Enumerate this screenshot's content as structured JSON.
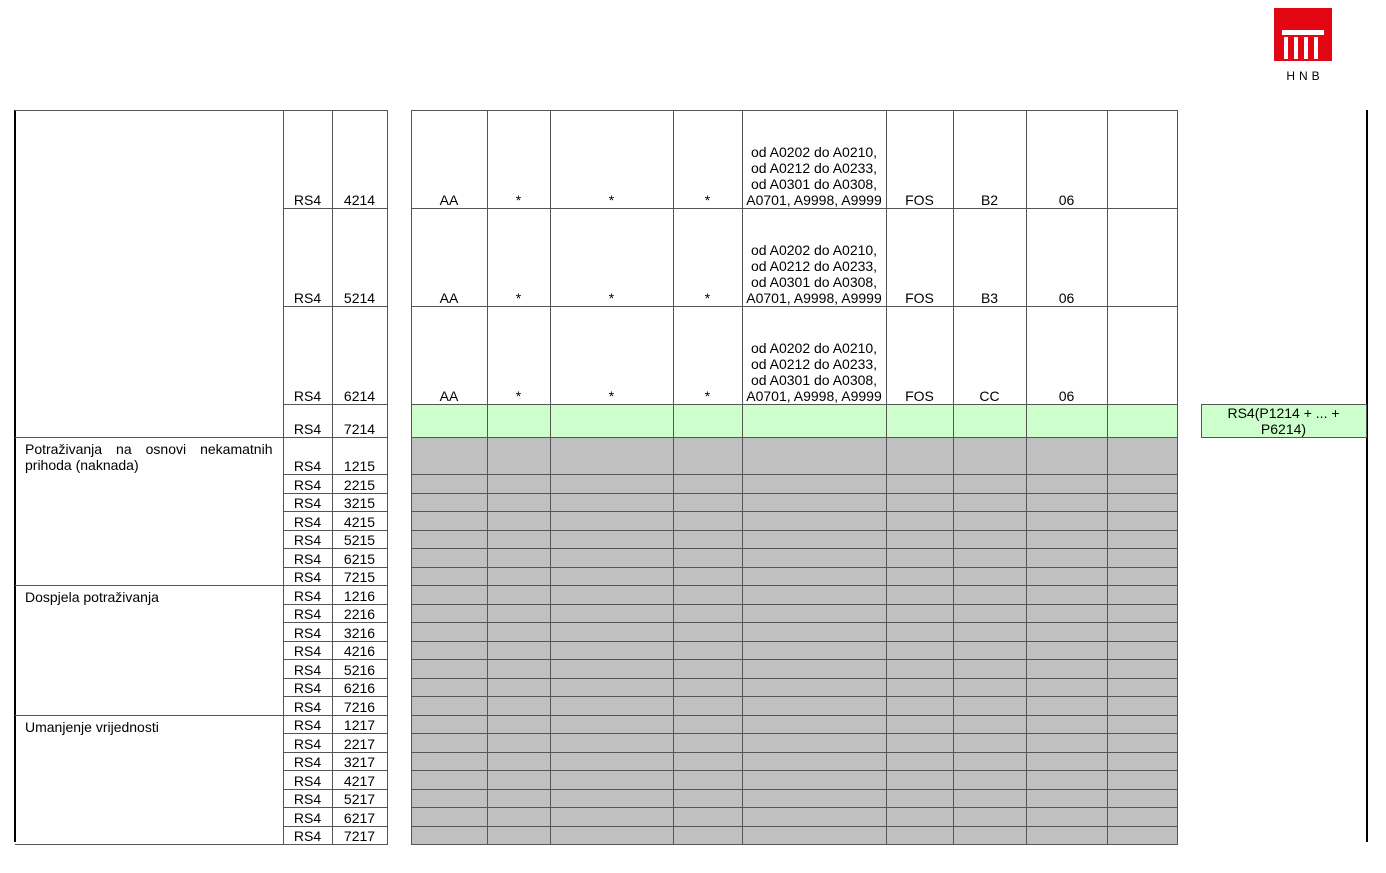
{
  "logo": {
    "text": "HNB",
    "color": "#e30613"
  },
  "colors": {
    "grey": "#c0c0c0",
    "green": "#ccffcc"
  },
  "groups": [
    {
      "label": "",
      "rows": [
        {
          "rs": "RS4",
          "code": "4214",
          "fill": "none",
          "cells": [
            "AA",
            "*",
            "*",
            "*",
            "od A0202 do A0210, od A0212 do A0233, od A0301 do A0308, A0701, A9998, A9999",
            "FOS",
            "B2",
            "06",
            ""
          ]
        },
        {
          "rs": "RS4",
          "code": "5214",
          "fill": "none",
          "cells": [
            "AA",
            "*",
            "*",
            "*",
            "od A0202 do A0210, od A0212 do A0233, od A0301 do A0308, A0701, A9998, A9999",
            "FOS",
            "B3",
            "06",
            ""
          ]
        },
        {
          "rs": "RS4",
          "code": "6214",
          "fill": "none",
          "cells": [
            "AA",
            "*",
            "*",
            "*",
            "od A0202 do A0210, od A0212 do A0233, od A0301 do A0308, A0701, A9998, A9999",
            "FOS",
            "CC",
            "06",
            ""
          ]
        },
        {
          "rs": "RS4",
          "code": "7214",
          "fill": "green",
          "cells": [
            "",
            "",
            "",
            "",
            "",
            "",
            "",
            "",
            ""
          ],
          "formula": "RS4(P1214 + ... + P6214)"
        }
      ]
    },
    {
      "label": "Potraživanja na osnovi nekamatnih prihoda (naknada)",
      "rows": [
        {
          "rs": "RS4",
          "code": "1215",
          "fill": "grey"
        },
        {
          "rs": "RS4",
          "code": "2215",
          "fill": "grey"
        },
        {
          "rs": "RS4",
          "code": "3215",
          "fill": "grey"
        },
        {
          "rs": "RS4",
          "code": "4215",
          "fill": "grey"
        },
        {
          "rs": "RS4",
          "code": "5215",
          "fill": "grey"
        },
        {
          "rs": "RS4",
          "code": "6215",
          "fill": "grey"
        },
        {
          "rs": "RS4",
          "code": "7215",
          "fill": "grey"
        }
      ]
    },
    {
      "label": "Dospjela potraživanja",
      "rows": [
        {
          "rs": "RS4",
          "code": "1216",
          "fill": "grey"
        },
        {
          "rs": "RS4",
          "code": "2216",
          "fill": "grey"
        },
        {
          "rs": "RS4",
          "code": "3216",
          "fill": "grey"
        },
        {
          "rs": "RS4",
          "code": "4216",
          "fill": "grey"
        },
        {
          "rs": "RS4",
          "code": "5216",
          "fill": "grey"
        },
        {
          "rs": "RS4",
          "code": "6216",
          "fill": "grey"
        },
        {
          "rs": "RS4",
          "code": "7216",
          "fill": "grey"
        }
      ]
    },
    {
      "label": "Umanjenje vrijednosti",
      "rows": [
        {
          "rs": "RS4",
          "code": "1217",
          "fill": "grey"
        },
        {
          "rs": "RS4",
          "code": "2217",
          "fill": "grey"
        },
        {
          "rs": "RS4",
          "code": "3217",
          "fill": "grey"
        },
        {
          "rs": "RS4",
          "code": "4217",
          "fill": "grey"
        },
        {
          "rs": "RS4",
          "code": "5217",
          "fill": "grey"
        },
        {
          "rs": "RS4",
          "code": "6217",
          "fill": "grey"
        },
        {
          "rs": "RS4",
          "code": "7217",
          "fill": "grey"
        }
      ]
    }
  ]
}
